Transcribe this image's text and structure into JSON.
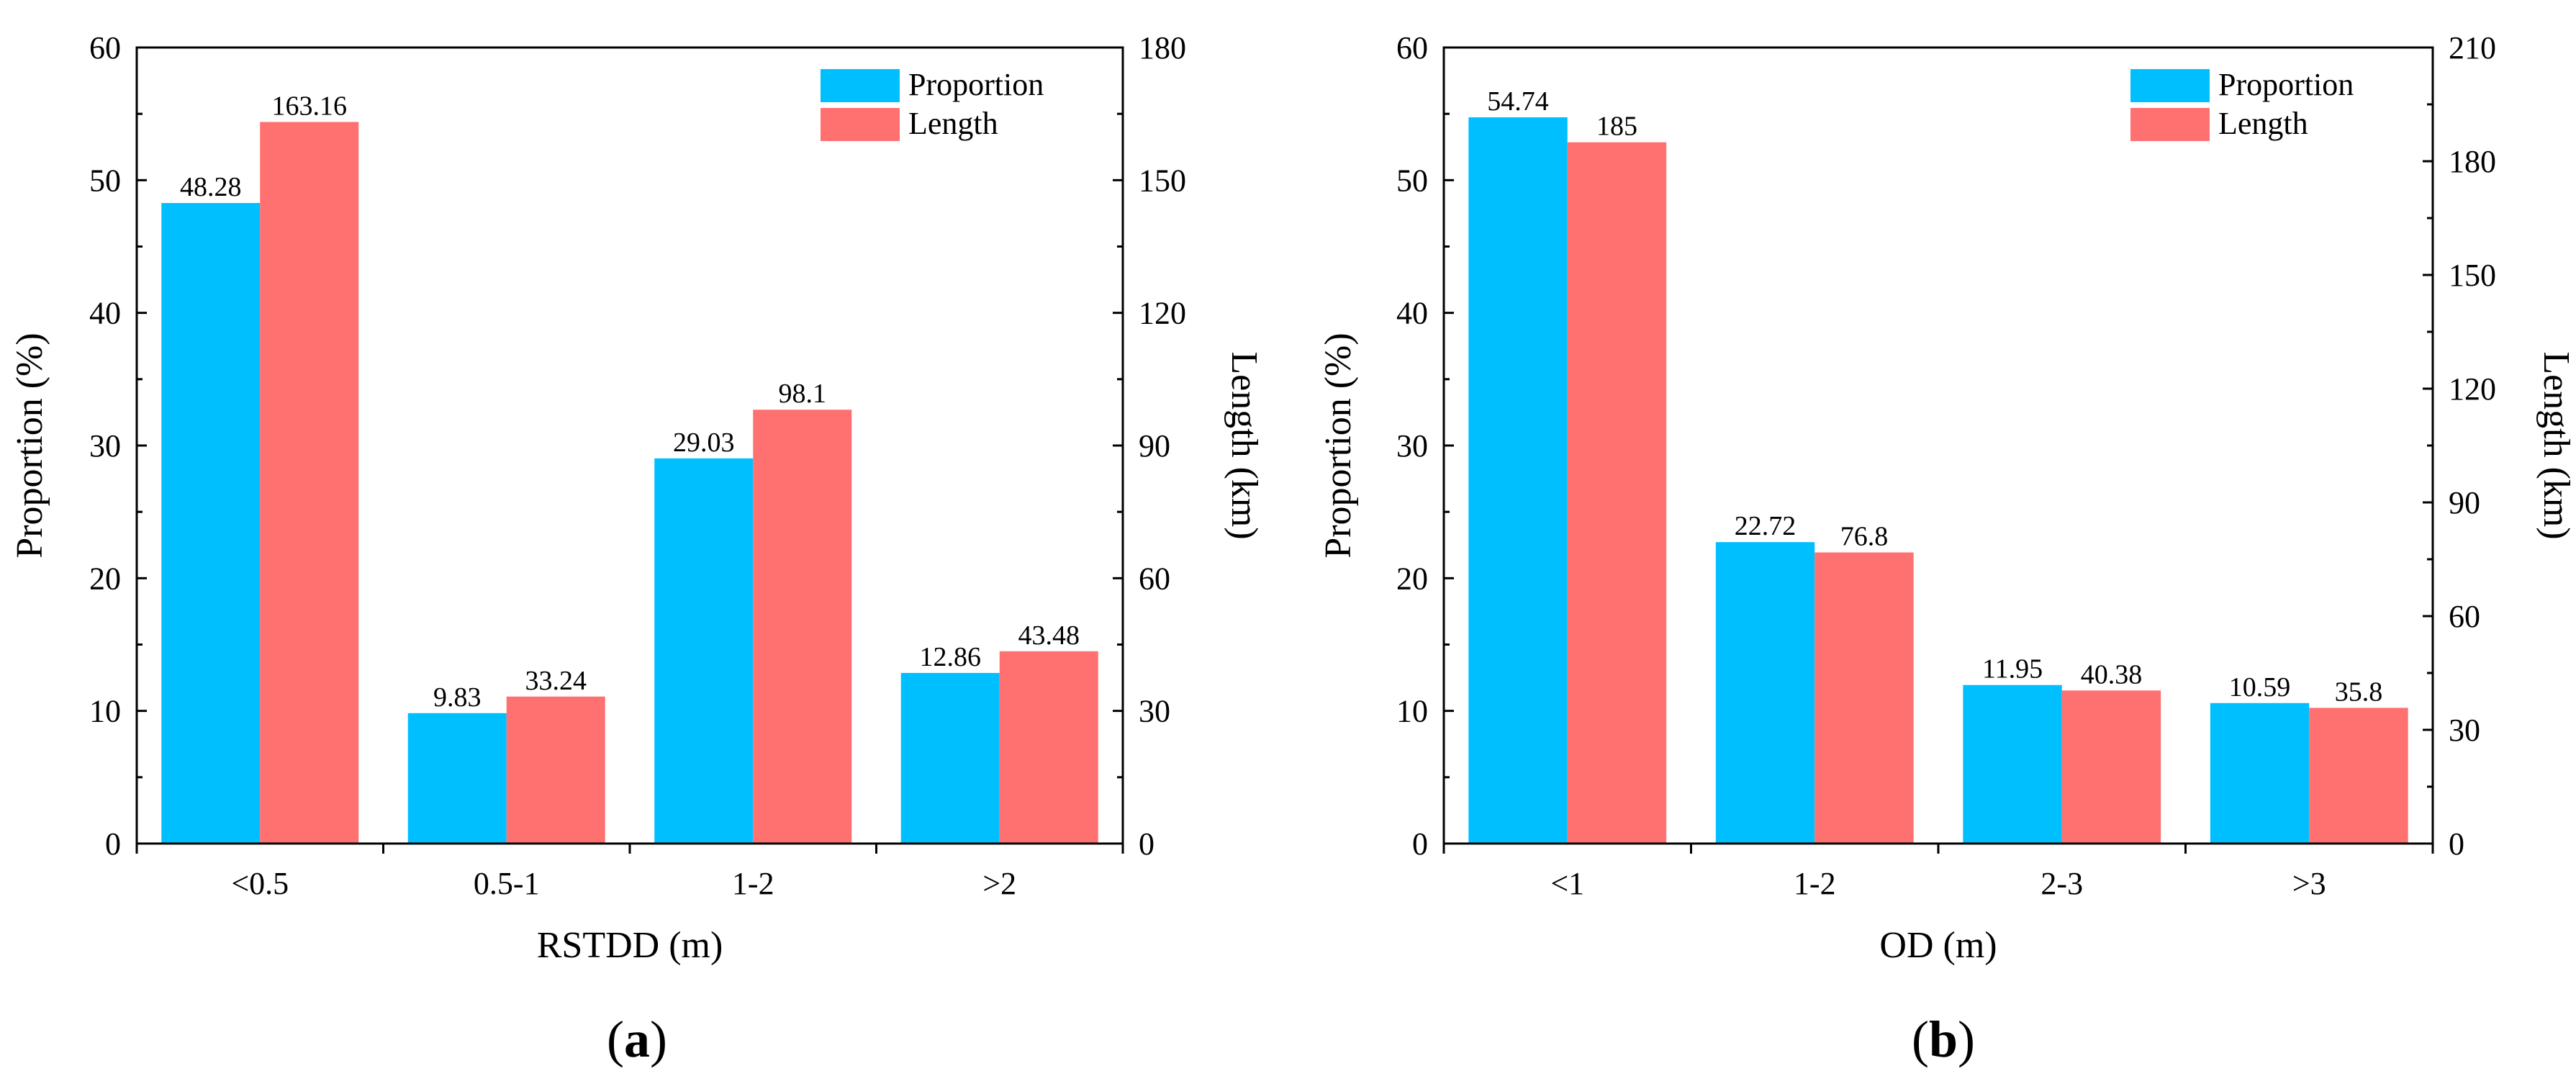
{
  "chart_data": [
    {
      "type": "bar",
      "panel": "a",
      "categories": [
        "<0.5",
        "0.5-1",
        "1-2",
        ">2"
      ],
      "xlabel": "RSTDD (m)",
      "ylabel": "Proportion (%)",
      "y2label": "Length (km)",
      "ylim": [
        0,
        60
      ],
      "yticks": [
        0,
        10,
        20,
        30,
        40,
        50,
        60
      ],
      "y2lim": [
        0,
        180
      ],
      "y2ticks": [
        0,
        30,
        60,
        90,
        120,
        150,
        180
      ],
      "series": [
        {
          "name": "Proportion",
          "axis": "left",
          "color": "#00BFFF",
          "values": [
            48.28,
            9.83,
            29.03,
            12.86
          ],
          "labels": [
            "48.28",
            "9.83",
            "29.03",
            "12.86"
          ]
        },
        {
          "name": "Length",
          "axis": "right",
          "color": "#FF7070",
          "values": [
            163.16,
            33.24,
            98.1,
            43.48
          ],
          "labels": [
            "163.16",
            "33.24",
            "98.1",
            "43.48"
          ]
        }
      ],
      "legend": "top-right",
      "grid": false
    },
    {
      "type": "bar",
      "panel": "b",
      "categories": [
        "<1",
        "1-2",
        "2-3",
        ">3"
      ],
      "xlabel": "OD (m)",
      "ylabel": "Proportion (%)",
      "y2label": "Length (km)",
      "ylim": [
        0,
        60
      ],
      "yticks": [
        0,
        10,
        20,
        30,
        40,
        50,
        60
      ],
      "y2lim": [
        0,
        210
      ],
      "y2ticks": [
        0,
        30,
        60,
        90,
        120,
        150,
        180,
        210
      ],
      "series": [
        {
          "name": "Proportion",
          "axis": "left",
          "color": "#00BFFF",
          "values": [
            54.74,
            22.72,
            11.95,
            10.59
          ],
          "labels": [
            "54.74",
            "22.72",
            "11.95",
            "10.59"
          ]
        },
        {
          "name": "Length",
          "axis": "right",
          "color": "#FF7070",
          "values": [
            185,
            76.8,
            40.38,
            35.8
          ],
          "labels": [
            "185",
            "76.8",
            "40.38",
            "35.8"
          ]
        }
      ],
      "legend": "top-right",
      "grid": false
    }
  ],
  "panel_labels": [
    {
      "open": "(",
      "letter": "a",
      "close": ")"
    },
    {
      "open": "(",
      "letter": "b",
      "close": ")"
    }
  ]
}
